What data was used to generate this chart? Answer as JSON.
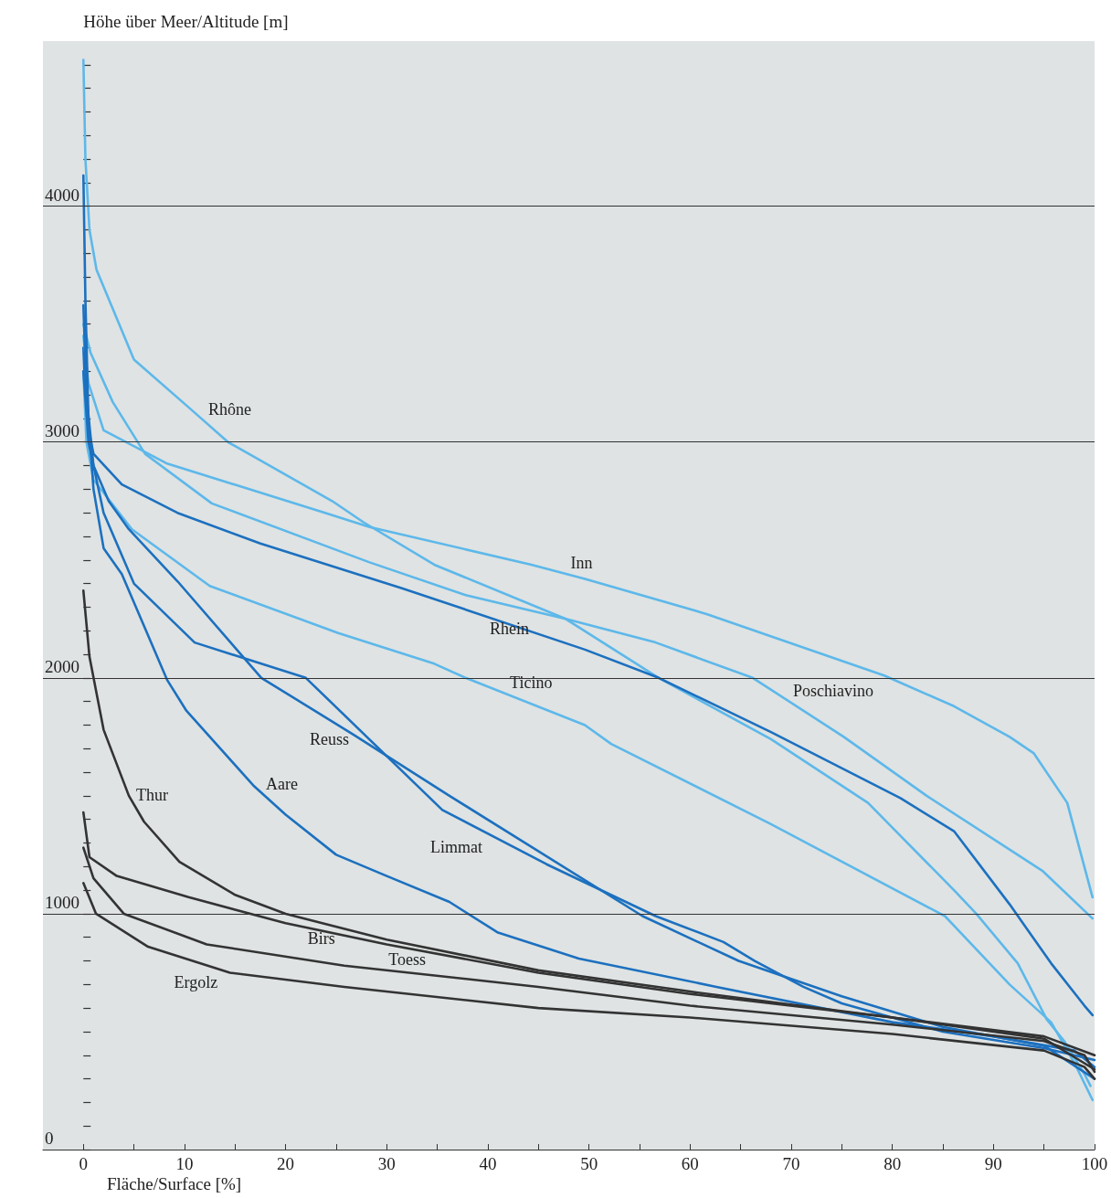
{
  "chart_data": {
    "type": "line",
    "xlabel": "Fläche/Surface [%]",
    "ylabel": "Höhe über Meer/Altitude [m]",
    "xlim": [
      -4,
      100
    ],
    "xticks": [
      0,
      {
        "value": 5,
        "label": null
      },
      10,
      {
        "value": 15,
        "label": null
      },
      20,
      {
        "value": 25,
        "label": null
      },
      30,
      {
        "value": 35,
        "label": null
      },
      40,
      {
        "value": 45,
        "label": null
      },
      50,
      {
        "value": 55,
        "label": null
      },
      60,
      {
        "value": 65,
        "label": null
      },
      70,
      {
        "value": 75,
        "label": null
      },
      80,
      {
        "value": 85,
        "label": null
      },
      90,
      {
        "value": 95,
        "label": null
      },
      100
    ],
    "ylim": [
      0,
      4700
    ],
    "yticks": [
      0,
      {
        "value": 100,
        "label": null
      },
      {
        "value": 200,
        "label": null
      },
      {
        "value": 300,
        "label": null
      },
      {
        "value": 400,
        "label": null
      },
      {
        "value": 500,
        "label": null
      },
      {
        "value": 600,
        "label": null
      },
      {
        "value": 700,
        "label": null
      },
      {
        "value": 800,
        "label": null
      },
      {
        "value": 900,
        "label": null
      },
      1000,
      {
        "value": 1100,
        "label": null
      },
      {
        "value": 1200,
        "label": null
      },
      {
        "value": 1300,
        "label": null
      },
      {
        "value": 1400,
        "label": null
      },
      {
        "value": 1500,
        "label": null
      },
      {
        "value": 1600,
        "label": null
      },
      {
        "value": 1700,
        "label": null
      },
      {
        "value": 1800,
        "label": null
      },
      {
        "value": 1900,
        "label": null
      },
      2000,
      {
        "value": 2100,
        "label": null
      },
      {
        "value": 2200,
        "label": null
      },
      {
        "value": 2300,
        "label": null
      },
      {
        "value": 2400,
        "label": null
      },
      {
        "value": 2500,
        "label": null
      },
      {
        "value": 2600,
        "label": null
      },
      {
        "value": 2700,
        "label": null
      },
      {
        "value": 2800,
        "label": null
      },
      {
        "value": 2900,
        "label": null
      },
      3000,
      {
        "value": 3100,
        "label": null
      },
      {
        "value": 3200,
        "label": null
      },
      {
        "value": 3300,
        "label": null
      },
      {
        "value": 3400,
        "label": null
      },
      {
        "value": 3500,
        "label": null
      },
      {
        "value": 3600,
        "label": null
      },
      {
        "value": 3700,
        "label": null
      },
      {
        "value": 3800,
        "label": null
      },
      {
        "value": 3900,
        "label": null
      },
      4000,
      {
        "value": 4100,
        "label": null
      },
      {
        "value": 4200,
        "label": null
      },
      {
        "value": 4300,
        "label": null
      },
      {
        "value": 4400,
        "label": null
      },
      {
        "value": 4500,
        "label": null
      },
      {
        "value": 4600,
        "label": null
      }
    ],
    "grid": "y",
    "legend": false,
    "series": [
      {
        "name": "Rhône",
        "color": "#5db8ea",
        "x": [
          0,
          0.2,
          0.6,
          1.3,
          5,
          10.6,
          14.3,
          24.6,
          27.7,
          34.7,
          47.7,
          56.9,
          68,
          77.6,
          86.1,
          88.3,
          92.4,
          95.3,
          97,
          99,
          99.6
        ],
        "values": [
          4620,
          4200,
          3900,
          3730,
          3350,
          3140,
          3000,
          2750,
          2660,
          2480,
          2250,
          2000,
          1740,
          1470,
          1100,
          1000,
          790,
          550,
          460,
          320,
          270
        ]
      },
      {
        "name": "Rhein",
        "color": "#1c70bf",
        "x": [
          0,
          0.3,
          1,
          3.8,
          9.3,
          17.5,
          31.5,
          49.6,
          56.9,
          68,
          80.8,
          86.1,
          91.6,
          95.7,
          99,
          99.8
        ],
        "values": [
          3400,
          3100,
          2950,
          2820,
          2700,
          2570,
          2380,
          2120,
          2000,
          1770,
          1490,
          1350,
          1040,
          790,
          610,
          570
        ]
      },
      {
        "name": "Inn",
        "color": "#5db8ea",
        "x": [
          0,
          0.5,
          2,
          8.2,
          23.9,
          28.3,
          44.3,
          49.6,
          61.7,
          79.2,
          86.1,
          91.6,
          94,
          97.3,
          99.8
        ],
        "values": [
          3450,
          3250,
          3050,
          2910,
          2700,
          2640,
          2480,
          2420,
          2270,
          2010,
          1880,
          1750,
          1680,
          1470,
          1070
        ]
      },
      {
        "name": "Poschiavino",
        "color": "#5db8ea",
        "x": [
          0,
          0.7,
          2.9,
          6.1,
          12.7,
          28.3,
          37.9,
          47.7,
          56.6,
          66.2,
          75.2,
          83.4,
          94.9,
          99.8
        ],
        "values": [
          3500,
          3380,
          3170,
          2950,
          2740,
          2490,
          2350,
          2250,
          2150,
          2000,
          1750,
          1500,
          1180,
          980
        ]
      },
      {
        "name": "Ticino",
        "color": "#5db8ea",
        "x": [
          0,
          0.3,
          1,
          4.8,
          12.5,
          25.2,
          34.7,
          37.8,
          49.6,
          52.2,
          68,
          85.2,
          91.6,
          95.7,
          98.1,
          99.8
        ],
        "values": [
          3300,
          3000,
          2840,
          2630,
          2390,
          2190,
          2060,
          2000,
          1800,
          1720,
          1380,
          990,
          700,
          540,
          360,
          210
        ]
      },
      {
        "name": "Reuss",
        "color": "#1c70bf",
        "x": [
          0,
          0.3,
          1,
          2.5,
          4.5,
          9.3,
          17.6,
          26.7,
          36.2,
          55.3,
          64.8,
          75,
          85,
          95,
          100
        ],
        "values": [
          3580,
          3200,
          2900,
          2750,
          2630,
          2410,
          2000,
          1760,
          1500,
          990,
          800,
          650,
          520,
          440,
          300
        ]
      },
      {
        "name": "Limmat",
        "color": "#1c70bf",
        "x": [
          0,
          0.5,
          2,
          5,
          11,
          22,
          35.5,
          45.8,
          56.6,
          63.3,
          66.4,
          71.2,
          75,
          85,
          95,
          100
        ],
        "values": [
          3300,
          3000,
          2700,
          2400,
          2150,
          2000,
          1440,
          1210,
          990,
          880,
          800,
          690,
          620,
          500,
          430,
          380
        ]
      },
      {
        "name": "Aare",
        "color": "#1c70bf",
        "x": [
          0,
          0.2,
          0.5,
          1,
          2,
          3.8,
          8.3,
          10.2,
          16.9,
          20,
          25,
          30,
          36.2,
          41,
          49,
          62.6,
          80,
          90,
          98,
          100
        ],
        "values": [
          4130,
          3600,
          3100,
          2800,
          2550,
          2440,
          1990,
          1860,
          1540,
          1420,
          1250,
          1160,
          1050,
          920,
          810,
          690,
          540,
          480,
          420,
          350
        ]
      },
      {
        "name": "Thur",
        "color": "#333333",
        "x": [
          0,
          0.6,
          2,
          4.5,
          6,
          9.5,
          15,
          20,
          30,
          45,
          60,
          80,
          95,
          100
        ],
        "values": [
          2370,
          2090,
          1780,
          1500,
          1390,
          1220,
          1080,
          1000,
          890,
          760,
          670,
          560,
          470,
          340
        ]
      },
      {
        "name": "Birs",
        "color": "#333333",
        "x": [
          0,
          0.6,
          3.3,
          10.4,
          20,
          30,
          45,
          60,
          80,
          95,
          100
        ],
        "values": [
          1430,
          1240,
          1160,
          1070,
          960,
          870,
          750,
          660,
          560,
          480,
          400
        ]
      },
      {
        "name": "Ergolz",
        "color": "#333333",
        "x": [
          0,
          1.25,
          6.4,
          14.5,
          25.8,
          45,
          60,
          80,
          95,
          99,
          100
        ],
        "values": [
          1130,
          1000,
          860,
          750,
          690,
          600,
          560,
          490,
          420,
          350,
          300
        ]
      },
      {
        "name": "Toess",
        "color": "#333333",
        "x": [
          0,
          1,
          4,
          12.2,
          25.8,
          45,
          60,
          80,
          95,
          99,
          100
        ],
        "values": [
          1280,
          1150,
          1000,
          870,
          780,
          690,
          610,
          530,
          460,
          400,
          330
        ]
      }
    ]
  }
}
